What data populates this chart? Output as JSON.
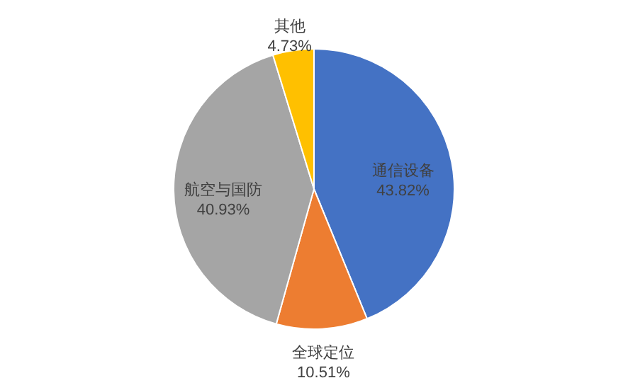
{
  "chart_data": {
    "type": "pie",
    "categories": [
      "通信设备",
      "全球定位",
      "航空与国防",
      "其他"
    ],
    "values": [
      43.82,
      10.51,
      40.93,
      4.73
    ],
    "colors": [
      "#4472c4",
      "#ed7d31",
      "#a5a5a5",
      "#ffc000"
    ],
    "value_labels": [
      "43.82%",
      "10.51%",
      "40.93%",
      "4.73%"
    ]
  }
}
